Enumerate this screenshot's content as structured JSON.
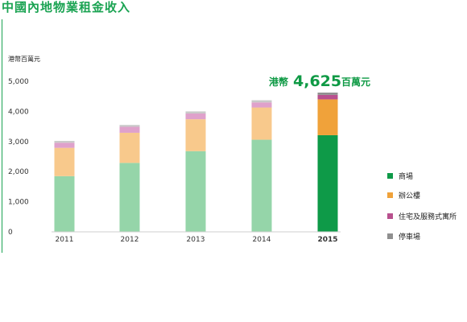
{
  "page": {
    "title": "中國內地物業租金收入"
  },
  "chart_data": {
    "type": "bar",
    "stacked": true,
    "ylabel": "港幣百萬元",
    "ylim": [
      0,
      5000
    ],
    "yticks": [
      "0",
      "1,000",
      "2,000",
      "3,000",
      "4,000",
      "5,000"
    ],
    "yticks_values": [
      0,
      1000,
      2000,
      3000,
      4000,
      5000
    ],
    "categories": [
      "2011",
      "2012",
      "2013",
      "2014",
      "2015"
    ],
    "highlight_category": "2015",
    "grid": false,
    "legend_position": "right",
    "series": [
      {
        "name": "商場",
        "values": [
          1850,
          2290,
          2680,
          3060,
          3210
        ],
        "color": "#95d5a9",
        "highlight_color": "#0e9a48"
      },
      {
        "name": "辦公樓",
        "values": [
          940,
          1000,
          1060,
          1070,
          1190
        ],
        "color": "#f8c98c",
        "highlight_color": "#f0a23a"
      },
      {
        "name": "住宅及服務式寓所",
        "values": [
          170,
          200,
          190,
          170,
          150
        ],
        "color": "#dfa1cb",
        "highlight_color": "#b8508e"
      },
      {
        "name": "停車場",
        "values": [
          60,
          60,
          70,
          70,
          75
        ],
        "color": "#c9c9c9",
        "highlight_color": "#8f8f8f"
      }
    ],
    "annotation": {
      "category": "2015",
      "prefix": "港幣",
      "value": "4,625",
      "suffix": "百萬元",
      "color": "#0f9a45"
    }
  }
}
